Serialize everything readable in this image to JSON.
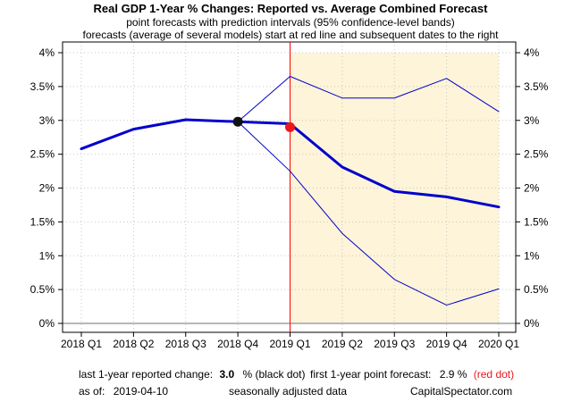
{
  "titles": {
    "main": "Real GDP 1-Year % Changes: Reported vs. Average Combined Forecast",
    "sub1": "point forecasts with prediction intervals (95% confidence-level bands)",
    "sub2": "forecasts (average of several models) start at red line and subsequent dates to the right"
  },
  "footer": {
    "reported_label": "last 1-year reported change:",
    "reported_value": "3.0",
    "reported_unit": "% (black dot)",
    "forecast_label": "first 1-year point forecast:",
    "forecast_value": "2.9 %",
    "forecast_note": "(red dot)",
    "asof_label": "as of:",
    "asof_value": "2019-04-10",
    "seasonal": "seasonally adjusted data",
    "source": "CapitalSpectator.com"
  },
  "colors": {
    "line": "#0000cc",
    "forecast_shade": "#fdf4d9",
    "forecast_start": "#ff0000",
    "reported_dot": "#111111",
    "forecast_dot": "#e8181c",
    "grid": "#c8c8c8",
    "zero_line": "#a0a0a0"
  },
  "chart_data": {
    "type": "line",
    "categories": [
      "2018 Q1",
      "2018 Q2",
      "2018 Q3",
      "2018 Q4",
      "2019 Q1",
      "2019 Q2",
      "2019 Q3",
      "2019 Q4",
      "2020 Q1"
    ],
    "ylim": [
      0,
      4
    ],
    "yticks": [
      0,
      0.5,
      1,
      1.5,
      2,
      2.5,
      3,
      3.5,
      4
    ],
    "ytick_labels": [
      "0%",
      "0.5%",
      "1%",
      "1.5%",
      "2%",
      "2.5%",
      "3%",
      "3.5%",
      "4%"
    ],
    "grid": true,
    "forecast_start_category": "2019 Q1",
    "series": [
      {
        "values": [
          2.58,
          2.87,
          3.01,
          2.98,
          2.95,
          2.31,
          1.95,
          1.87,
          1.72
        ]
      },
      {
        "values": [
          null,
          null,
          null,
          2.98,
          3.65,
          3.33,
          3.33,
          3.62,
          3.13
        ]
      },
      {
        "values": [
          null,
          null,
          null,
          2.98,
          2.25,
          1.33,
          0.65,
          0.27,
          0.51
        ]
      }
    ],
    "markers": [
      {
        "category": "2018 Q4",
        "value": 2.98
      },
      {
        "category": "2019 Q1",
        "value": 2.9
      }
    ]
  }
}
